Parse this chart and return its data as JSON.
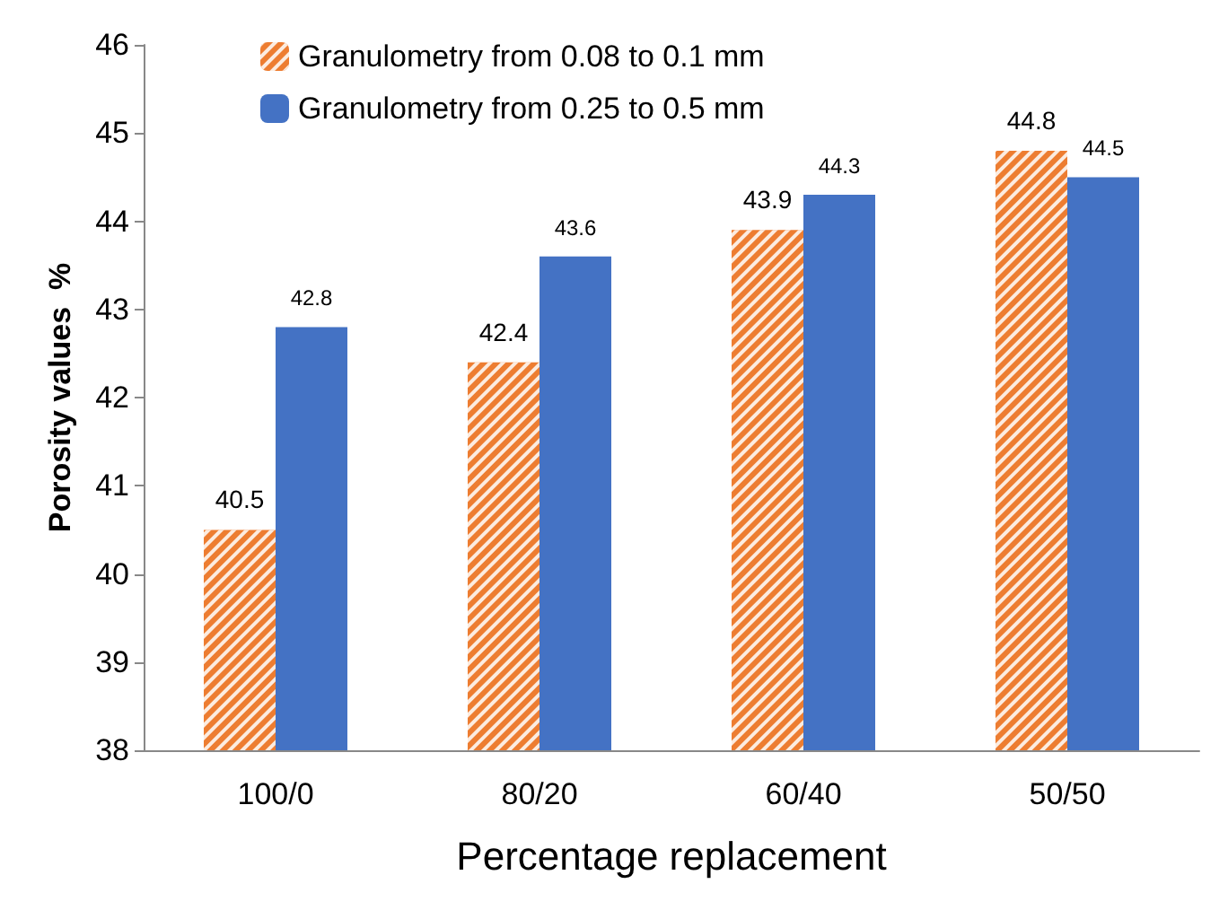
{
  "chart_data": {
    "type": "bar",
    "xlabel": "Percentage replacement",
    "ylabel": "Porosity values  %",
    "categories": [
      "100/0",
      "80/20",
      "60/40",
      "50/50"
    ],
    "series": [
      {
        "name": "Granulometry from 0.08 to 0.1 mm",
        "color": "#ed7d31",
        "values": [
          40.5,
          42.4,
          43.9,
          44.8
        ]
      },
      {
        "name": "Granulometry from 0.25 to 0.5 mm",
        "color": "#4472c4",
        "values": [
          42.8,
          43.6,
          44.3,
          44.5
        ]
      }
    ],
    "ylim": [
      38,
      46
    ],
    "yticks": [
      38,
      39,
      40,
      41,
      42,
      43,
      44,
      45,
      46
    ],
    "grid": false,
    "legend": "top left",
    "data_labels": true
  }
}
